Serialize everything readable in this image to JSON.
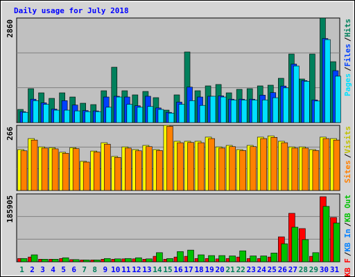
{
  "title": "Daily usage for July 2018",
  "legend_separator": "/",
  "chart_data": [
    {
      "type": "bar",
      "ylim": [
        0,
        2860
      ],
      "yticks": [
        {
          "value": 2860,
          "label": "2860"
        }
      ],
      "grid_divisions": 3,
      "legend_order": "reverse",
      "series": [
        {
          "name": "Hits",
          "color": "#00805c",
          "values": [
            360,
            928,
            814,
            663,
            814,
            700,
            530,
            492,
            871,
            1515,
            871,
            758,
            852,
            682,
            341,
            758,
            1932,
            871,
            1004,
            1042,
            814,
            909,
            928,
            1004,
            1023,
            1212,
            1875,
            1193,
            1875,
            2860,
            1666
          ]
        },
        {
          "name": "Files",
          "color": "#0040ff",
          "values": [
            300,
            640,
            540,
            370,
            600,
            480,
            330,
            320,
            700,
            720,
            700,
            460,
            720,
            400,
            280,
            560,
            970,
            700,
            720,
            730,
            640,
            640,
            640,
            750,
            820,
            1000,
            1600,
            1150,
            620,
            2300,
            1420
          ]
        },
        {
          "name": "Pages",
          "color": "#00e0ff",
          "values": [
            280,
            600,
            500,
            340,
            340,
            320,
            300,
            300,
            420,
            700,
            500,
            420,
            440,
            360,
            260,
            500,
            600,
            470,
            720,
            700,
            620,
            620,
            620,
            620,
            680,
            950,
            1550,
            1130,
            590,
            2270,
            1270
          ]
        }
      ]
    },
    {
      "type": "bar",
      "ylim": [
        0,
        266
      ],
      "yticks": [
        {
          "value": 266,
          "label": "266"
        }
      ],
      "grid_divisions": 3,
      "legend_order": "reverse",
      "series": [
        {
          "name": "Visits",
          "color": "#ffff00",
          "legend_color": "#c0c000",
          "values": [
            167,
            212,
            178,
            175,
            156,
            175,
            119,
            161,
            195,
            139,
            178,
            167,
            184,
            167,
            266,
            201,
            201,
            201,
            218,
            178,
            184,
            167,
            184,
            218,
            223,
            201,
            178,
            178,
            167,
            218,
            212
          ]
        },
        {
          "name": "Sites",
          "color": "#ff8000",
          "values": [
            162,
            206,
            173,
            170,
            152,
            171,
            116,
            157,
            189,
            135,
            173,
            162,
            179,
            163,
            262,
            195,
            196,
            195,
            212,
            173,
            179,
            163,
            179,
            212,
            217,
            195,
            173,
            173,
            163,
            212,
            206
          ]
        }
      ]
    },
    {
      "type": "bar",
      "ylim": [
        0,
        185905
      ],
      "yticks": [
        {
          "value": 185905,
          "label": "185905"
        }
      ],
      "grid_divisions": 3,
      "legend_order": "normal",
      "categories": [
        "1",
        "2",
        "3",
        "4",
        "5",
        "6",
        "7",
        "8",
        "9",
        "10",
        "11",
        "12",
        "13",
        "14",
        "15",
        "16",
        "17",
        "18",
        "19",
        "20",
        "21",
        "22",
        "23",
        "24",
        "25",
        "26",
        "27",
        "28",
        "29",
        "30",
        "31"
      ],
      "category_colors": [
        "#00805c",
        "#0000ff",
        "#0000ff",
        "#0000ff",
        "#0000ff",
        "#0000ff",
        "#00805c",
        "#00805c",
        "#0000ff",
        "#0000ff",
        "#0000ff",
        "#0000ff",
        "#0000ff",
        "#00805c",
        "#00805c",
        "#0000ff",
        "#0000ff",
        "#0000ff",
        "#0000ff",
        "#0000ff",
        "#00805c",
        "#00805c",
        "#0000ff",
        "#0000ff",
        "#0000ff",
        "#0000ff",
        "#0000ff",
        "#00805c",
        "#00805c",
        "#0000ff",
        "#0000ff"
      ],
      "series": [
        {
          "name": "KB F",
          "color": "#ff0000",
          "values": [
            9000,
            13000,
            7000,
            7000,
            9000,
            6000,
            5000,
            5000,
            7000,
            7000,
            8000,
            8000,
            7000,
            15000,
            7000,
            13000,
            15000,
            9000,
            9000,
            8000,
            9000,
            13000,
            9000,
            9000,
            13000,
            68300,
            132800,
            91000,
            15000,
            178300,
            121400
          ]
        },
        {
          "name": "KB In",
          "color": "#0080ff",
          "values": [
            null,
            null,
            null,
            null,
            null,
            null,
            null,
            null,
            null,
            null,
            null,
            null,
            null,
            null,
            null,
            null,
            null,
            null,
            null,
            null,
            null,
            null,
            null,
            null,
            null,
            null,
            null,
            null,
            null,
            null,
            null
          ]
        },
        {
          "name": "KB Out",
          "color": "#00c000",
          "values": [
            9000,
            19000,
            7000,
            7000,
            11000,
            6000,
            5000,
            5000,
            9000,
            8000,
            9000,
            11000,
            8000,
            25000,
            9000,
            28000,
            32000,
            19000,
            17000,
            17000,
            16000,
            30000,
            16000,
            16000,
            24000,
            49300,
            94850,
            60700,
            25000,
            151800,
            106200
          ]
        }
      ]
    }
  ]
}
